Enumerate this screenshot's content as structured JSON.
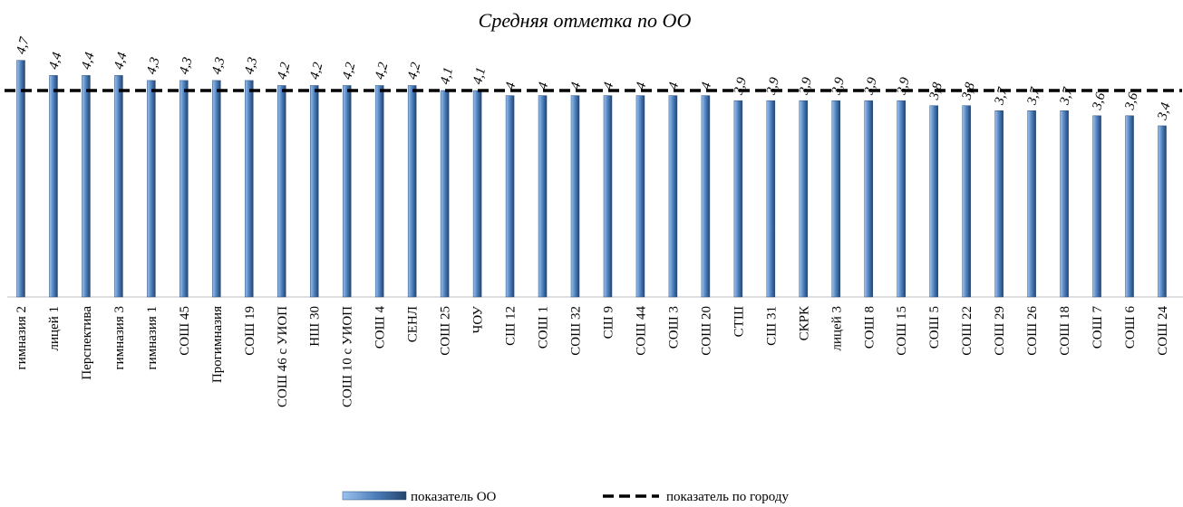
{
  "chart_data": {
    "type": "bar",
    "title": "Средняя отметка по ОО",
    "categories": [
      "гимназия 2",
      "лицей 1",
      "Перспектива",
      "гимназия 3",
      "гимназия 1",
      "СОШ 45",
      "Прогимназия",
      "СОШ 19",
      "СОШ 46 с УИОП",
      "НШ 30",
      "СОШ 10 с УИОП",
      "СОШ 4",
      "СЕНЛ",
      "СОШ 25",
      "ЧОУ",
      "СШ 12",
      "СОШ 1",
      "СОШ 32",
      "СШ 9",
      "СОШ 44",
      "СОШ 3",
      "СОШ 20",
      "СТШ",
      "СШ 31",
      "СКРК",
      "лицей 3",
      "СОШ 8",
      "СОШ 15",
      "СОШ 5",
      "СОШ 22",
      "СОШ 29",
      "СОШ 26",
      "СОШ 18",
      "СОШ 7",
      "СОШ 6",
      "СОШ 24"
    ],
    "series": [
      {
        "name": "показатель ОО",
        "color": "#4f81bd",
        "values": [
          4.7,
          4.4,
          4.4,
          4.4,
          4.3,
          4.3,
          4.3,
          4.3,
          4.2,
          4.2,
          4.2,
          4.2,
          4.2,
          4.1,
          4.1,
          4,
          4,
          4,
          4,
          4,
          4,
          4,
          3.9,
          3.9,
          3.9,
          3.9,
          3.9,
          3.9,
          3.8,
          3.8,
          3.7,
          3.7,
          3.7,
          3.6,
          3.6,
          3.4
        ],
        "value_labels": [
          "4,7",
          "4,4",
          "4,4",
          "4,4",
          "4,3",
          "4,3",
          "4,3",
          "4,3",
          "4,2",
          "4,2",
          "4,2",
          "4,2",
          "4,2",
          "4,1",
          "4,1",
          "4",
          "4",
          "4",
          "4",
          "4",
          "4",
          "4",
          "3,9",
          "3,9",
          "3,9",
          "3,9",
          "3,9",
          "3,9",
          "3,8",
          "3,8",
          "3,7",
          "3,7",
          "3,7",
          "3,6",
          "3,6",
          "3,4"
        ]
      },
      {
        "name": "показатель по городу",
        "type": "line",
        "color": "#000000",
        "values": [
          4.1,
          4.1,
          4.1,
          4.1,
          4.1,
          4.1,
          4.1,
          4.1,
          4.1,
          4.1,
          4.1,
          4.1,
          4.1,
          4.1,
          4.1,
          4.1,
          4.1,
          4.1,
          4.1,
          4.1,
          4.1,
          4.1,
          4.1,
          4.1,
          4.1,
          4.1,
          4.1,
          4.1,
          4.1,
          4.1,
          4.1,
          4.1,
          4.1,
          4.1,
          4.1,
          4.1
        ]
      }
    ],
    "ylim": [
      0,
      5
    ]
  }
}
